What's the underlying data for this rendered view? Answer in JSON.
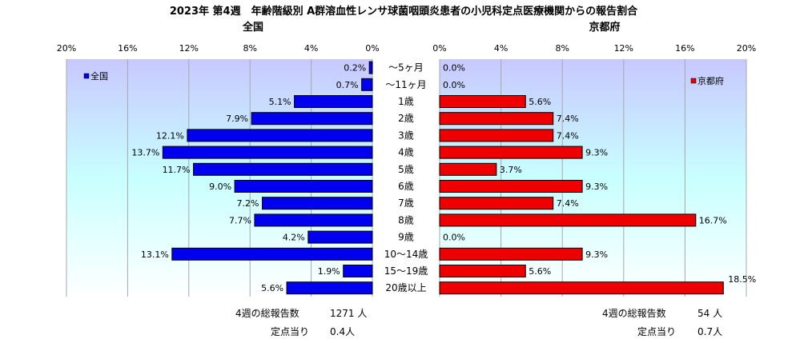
{
  "title": "2023年 第4週　年齢階級別 A群溶血性レンサ球菌咽頭炎患者の小児科定点医療機関からの報告割合",
  "chart_data": {
    "type": "bar",
    "orientation": "horizontal",
    "categories": [
      "～5ヶ月",
      "～11ヶ月",
      "1歳",
      "2歳",
      "3歳",
      "4歳",
      "5歳",
      "6歳",
      "7歳",
      "8歳",
      "9歳",
      "10～14歳",
      "15～19歳",
      "20歳以上"
    ],
    "xlim": [
      0,
      20
    ],
    "tick_labels": [
      "0%",
      "4%",
      "8%",
      "12%",
      "16%",
      "20%"
    ],
    "panels": [
      {
        "subtitle": "全国",
        "legend": "全国",
        "legend_position": "top-left",
        "color": "#0000ee",
        "direction": "left",
        "values": [
          0.2,
          0.7,
          5.1,
          7.9,
          12.1,
          13.7,
          11.7,
          9.0,
          7.2,
          7.7,
          4.2,
          13.1,
          1.9,
          5.6
        ],
        "data_labels": [
          "0.2%",
          "0.7%",
          "5.1%",
          "7.9%",
          "12.1%",
          "13.7%",
          "11.7%",
          "9.0%",
          "7.2%",
          "7.7%",
          "4.2%",
          "13.1%",
          "1.9%",
          "5.6%"
        ]
      },
      {
        "subtitle": "京都府",
        "legend": "京都府",
        "legend_position": "top-right",
        "color": "#ee0000",
        "direction": "right",
        "values": [
          0.0,
          0.0,
          5.6,
          7.4,
          7.4,
          9.3,
          3.7,
          9.3,
          7.4,
          16.7,
          0.0,
          9.3,
          5.6,
          18.5
        ],
        "data_labels": [
          "0.0%",
          "0.0%",
          "5.6%",
          "7.4%",
          "7.4%",
          "9.3%",
          "3.7%",
          "9.3%",
          "7.4%",
          "16.7%",
          "0.0%",
          "9.3%",
          "5.6%",
          "18.5%"
        ]
      }
    ]
  },
  "footer": {
    "left": {
      "total_label": "4週の総報告数",
      "total_value": "1271 人",
      "per_label": "定点当り",
      "per_value": "0.4人"
    },
    "right": {
      "total_label": "4週の総報告数",
      "total_value": "54 人",
      "per_label": "定点当り",
      "per_value": "0.7人"
    }
  }
}
